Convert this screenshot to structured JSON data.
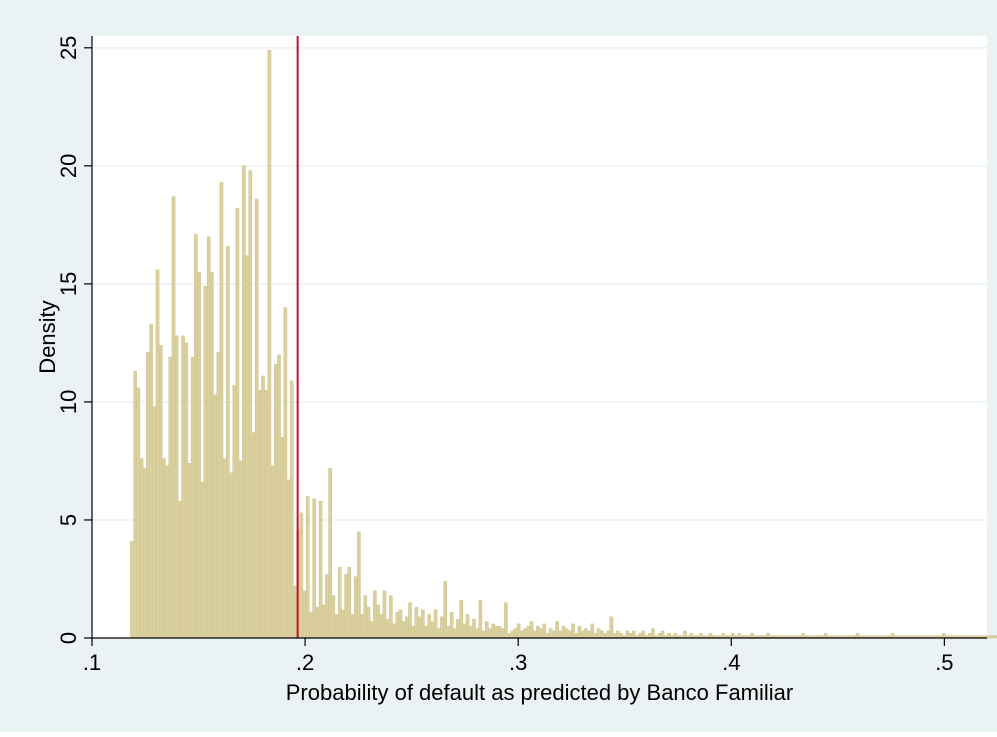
{
  "chart_data": {
    "type": "bar",
    "subtype": "histogram",
    "title": "",
    "xlabel": "Probability of default as predicted by Banco Familiar",
    "ylabel": "Density",
    "xlim": [
      0.1,
      0.52
    ],
    "ylim": [
      0,
      25.5
    ],
    "x_ticks": [
      0.1,
      0.2,
      0.3,
      0.4,
      0.5
    ],
    "x_tick_labels": [
      ".1",
      ".2",
      ".3",
      ".4",
      ".5"
    ],
    "y_ticks": [
      0,
      5,
      10,
      15,
      20,
      25
    ],
    "y_tick_labels": [
      "0",
      "5",
      "10",
      "15",
      "20",
      "25"
    ],
    "grid": "horizontal",
    "legend": "none",
    "colors": {
      "outer_background": "#eaf2f3",
      "plot_background": "#ffffff",
      "grid": "#eaf2f3",
      "bar_fill": "#d9cf9f",
      "bar_edge": "#cfc38b",
      "reference_line": "#c8102e"
    },
    "reference_line": {
      "x": 0.1965
    },
    "bin_width": 0.0015,
    "bins_start": 0.118,
    "values": [
      4.1,
      11.3,
      10.6,
      7.6,
      7.2,
      12.1,
      13.3,
      9.8,
      15.6,
      12.4,
      7.6,
      7.3,
      11.9,
      18.7,
      12.8,
      5.8,
      12.8,
      12.5,
      7.4,
      11.9,
      17.1,
      15.5,
      6.6,
      14.9,
      17.0,
      15.5,
      10.3,
      12.1,
      19.3,
      7.6,
      16.6,
      7.0,
      10.7,
      18.2,
      7.5,
      20.0,
      16.2,
      19.8,
      8.7,
      18.6,
      10.5,
      11.1,
      10.5,
      24.9,
      7.3,
      11.6,
      12.0,
      8.5,
      14.0,
      6.7,
      10.9,
      2.2,
      4.6,
      5.3,
      2.0,
      6.0,
      1.1,
      5.9,
      1.3,
      5.8,
      1.4,
      2.7,
      7.2,
      1.8,
      1.0,
      3.0,
      1.2,
      2.7,
      3.0,
      1.0,
      2.6,
      4.5,
      1.0,
      1.8,
      1.3,
      0.7,
      2.0,
      1.4,
      1.0,
      2.0,
      0.8,
      1.8,
      0.6,
      1.1,
      1.2,
      0.7,
      0.9,
      1.5,
      0.5,
      1.3,
      0.9,
      1.2,
      0.5,
      1.0,
      0.7,
      1.2,
      0.4,
      0.9,
      2.4,
      0.5,
      1.1,
      0.4,
      0.8,
      1.6,
      0.6,
      1.0,
      0.5,
      0.8,
      0.4,
      1.6,
      0.3,
      0.7,
      0.4,
      0.6,
      0.5,
      0.5,
      0.4,
      1.5,
      0.2,
      0.3,
      0.4,
      0.6,
      0.3,
      0.4,
      0.5,
      0.7,
      0.3,
      0.5,
      0.4,
      0.6,
      0.2,
      0.4,
      0.3,
      0.7,
      0.3,
      0.5,
      0.4,
      0.3,
      0.6,
      0.2,
      0.5,
      0.3,
      0.4,
      0.3,
      0.6,
      0.2,
      0.4,
      0.3,
      0.2,
      0.3,
      0.9,
      0.2,
      0.3,
      0.2,
      0.1,
      0.3,
      0.2,
      0.3,
      0.1,
      0.2,
      0.3,
      0.1,
      0.2,
      0.4,
      0.1,
      0.2,
      0.3,
      0.1,
      0.2,
      0.1,
      0.2,
      0.1,
      0.1,
      0.3,
      0.1,
      0.2,
      0.1,
      0.1,
      0.2,
      0.1,
      0.1,
      0.2,
      0.1,
      0.1,
      0.1,
      0.2,
      0.1,
      0.1,
      0.2,
      0.1,
      0.2,
      0.1,
      0.1,
      0.1,
      0.2,
      0.1,
      0.1,
      0.1,
      0.1,
      0.2,
      0.1,
      0.1,
      0.1,
      0.1,
      0.1,
      0.1,
      0.1,
      0.1,
      0.1,
      0.1,
      0.2,
      0.1,
      0.1,
      0.1,
      0.1,
      0.1,
      0.1,
      0.2,
      0.1,
      0.1,
      0.1,
      0.1,
      0.1,
      0.1,
      0.1,
      0.1,
      0.1,
      0.2,
      0.1,
      0.1,
      0.1,
      0.1,
      0.1,
      0.1,
      0.1,
      0.1,
      0.1,
      0.1,
      0.2,
      0.1,
      0.1,
      0.1,
      0.1,
      0.1,
      0.1,
      0.1,
      0.1,
      0.1,
      0.1,
      0.1,
      0.1,
      0.1,
      0.1,
      0.1,
      0.2,
      0.1,
      0.1,
      0.1,
      0.1,
      0.1,
      0.1,
      0.1,
      0.1,
      0.1,
      0.1,
      0.1,
      0.1,
      0.1,
      0.1,
      0.1,
      0.1,
      0.1,
      0.1
    ]
  }
}
